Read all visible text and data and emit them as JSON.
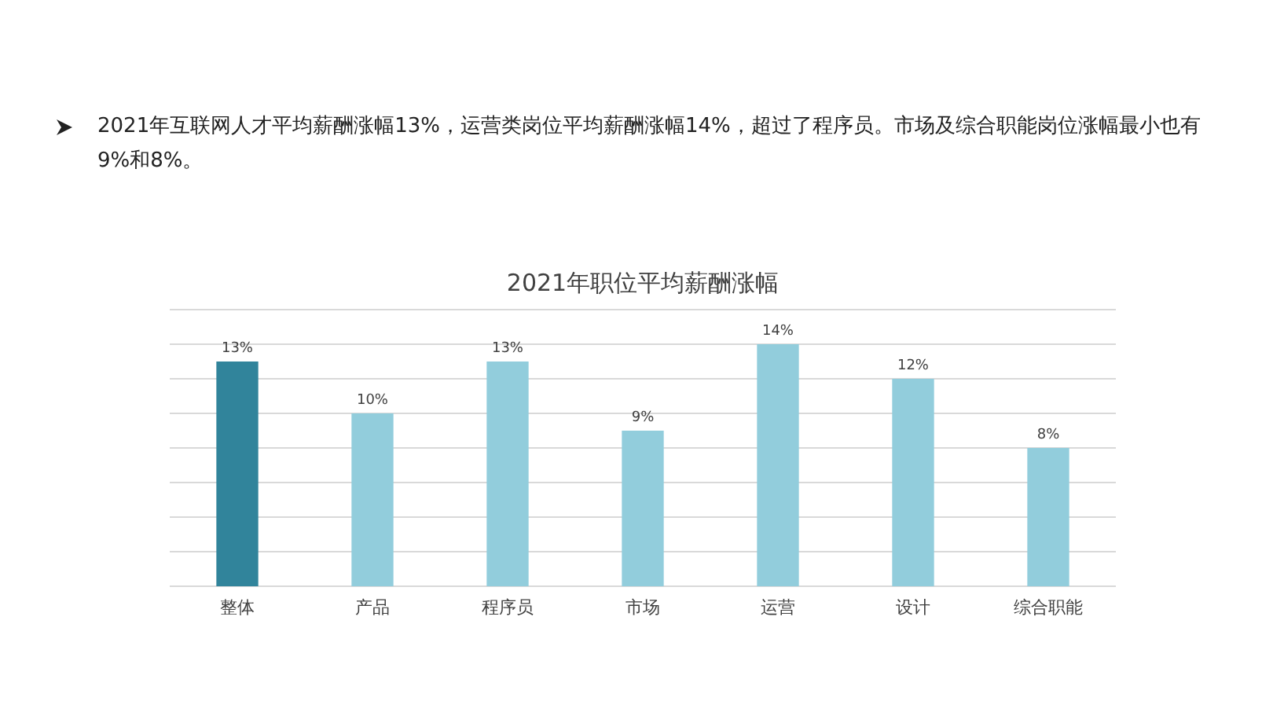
{
  "chart_data": {
    "type": "bar",
    "title": "2021年职位平均薪酬涨幅",
    "annotations": [
      "2021年互联网人才平均薪酬涨幅13%，运营类岗位平均薪酬涨幅14%，超过了程序员。市场及综合职能岗位涨幅最小也有9%和8%。"
    ],
    "categories": [
      "整体",
      "产品",
      "程序员",
      "市场",
      "运营",
      "设计",
      "综合职能"
    ],
    "values": [
      13,
      10,
      13,
      9,
      14,
      12,
      8
    ],
    "value_labels": [
      "13%",
      "10%",
      "13%",
      "9%",
      "14%",
      "12%",
      "8%"
    ],
    "colors": [
      "#31849b",
      "#92cddc",
      "#92cddc",
      "#92cddc",
      "#92cddc",
      "#92cddc",
      "#92cddc"
    ],
    "ylim": [
      0,
      16
    ],
    "yticks": [
      {
        "value": 0,
        "label": null
      },
      {
        "value": 2,
        "label": null
      },
      {
        "value": 4,
        "label": null
      },
      {
        "value": 6,
        "label": null
      },
      {
        "value": 8,
        "label": null
      },
      {
        "value": 10,
        "label": null
      },
      {
        "value": 12,
        "label": null
      },
      {
        "value": 14,
        "label": null
      },
      {
        "value": 16,
        "label": null
      }
    ],
    "grid": "y",
    "tick_labels": "x"
  }
}
